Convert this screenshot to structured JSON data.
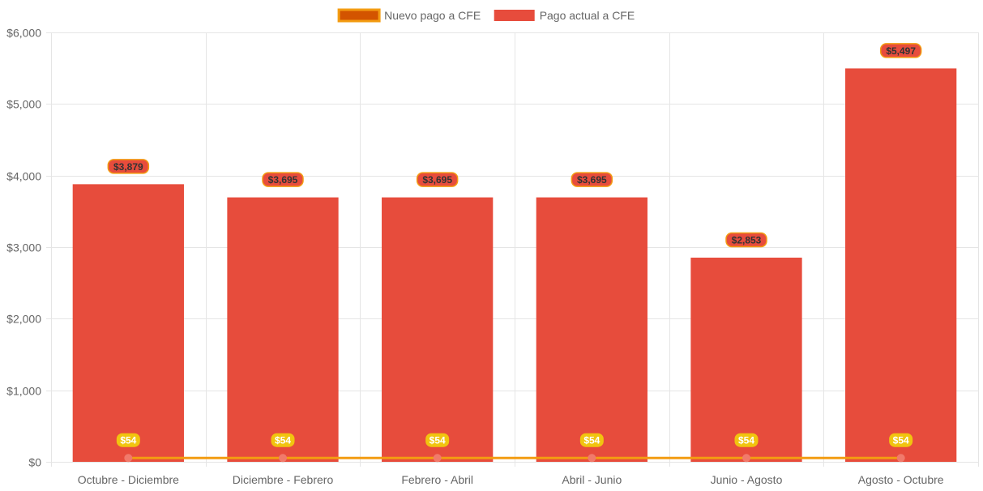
{
  "colors": {
    "bar_fill": "#e74c3c",
    "line": "#f39c12",
    "legend_line_fill": "#d35400",
    "point": "#f17a6b",
    "bar_label_bg": "#e74c3c",
    "bar_label_border": "#f39c12",
    "bar_label_text": "#333333",
    "line_label_bg": "#f1c40f",
    "line_label_text": "#ffffff",
    "grid": "#e5e5e5",
    "text": "#666666"
  },
  "chart_data": {
    "type": "bar",
    "categories": [
      "Octubre - Diciembre",
      "Diciembre - Febrero",
      "Febrero - Abril",
      "Abril - Junio",
      "Junio - Agosto",
      "Agosto - Octubre"
    ],
    "series": [
      {
        "name": "Nuevo pago a CFE",
        "type": "line",
        "values": [
          54,
          54,
          54,
          54,
          54,
          54
        ],
        "labels": [
          "$54",
          "$54",
          "$54",
          "$54",
          "$54",
          "$54"
        ]
      },
      {
        "name": "Pago actual a CFE",
        "type": "bar",
        "values": [
          3879,
          3695,
          3695,
          3695,
          2853,
          5497
        ],
        "labels": [
          "$3,879",
          "$3,695",
          "$3,695",
          "$3,695",
          "$2,853",
          "$5,497"
        ]
      }
    ],
    "ylim": [
      0,
      6000
    ],
    "yticks": [
      0,
      1000,
      2000,
      3000,
      4000,
      5000,
      6000
    ],
    "ytick_labels": [
      "$0",
      "$1,000",
      "$2,000",
      "$3,000",
      "$4,000",
      "$5,000",
      "$6,000"
    ],
    "grid": true,
    "legend_position": "top"
  }
}
